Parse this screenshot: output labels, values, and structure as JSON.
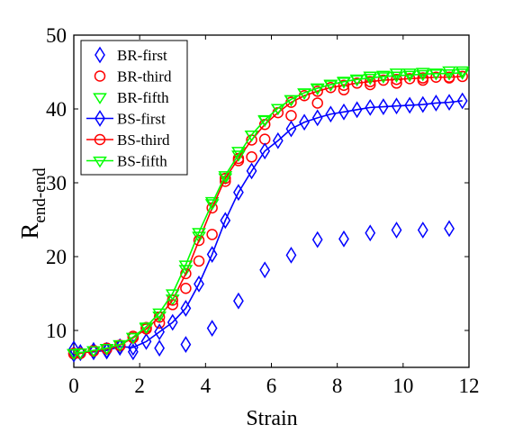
{
  "chart_data": {
    "type": "scatter",
    "title": "",
    "xlabel": "Strain",
    "ylabel": "R",
    "ylabel_sub": "end-end",
    "xlim": [
      0,
      12
    ],
    "ylim": [
      5,
      50
    ],
    "xticks": [
      0,
      2,
      4,
      6,
      8,
      10,
      12
    ],
    "yticks": [
      10,
      20,
      30,
      40,
      50
    ],
    "grid": false,
    "legend_placement": "top-left",
    "series": [
      {
        "name": "BR-first",
        "color": "#0000ff",
        "marker": "diamond",
        "line": false,
        "x": [
          0.0,
          0.2,
          0.6,
          1.0,
          1.4,
          1.8,
          2.6,
          3.4,
          4.2,
          5.0,
          5.8,
          6.6,
          7.4,
          8.2,
          9.0,
          9.8,
          10.6,
          11.4
        ],
        "y": [
          7.5,
          7.0,
          7.3,
          7.2,
          7.7,
          7.1,
          7.6,
          8.1,
          10.3,
          14.0,
          18.2,
          20.2,
          22.3,
          22.4,
          23.2,
          23.6,
          23.6,
          23.8
        ]
      },
      {
        "name": "BR-third",
        "color": "#ff0000",
        "marker": "circle",
        "line": false,
        "x": [
          0.0,
          0.2,
          0.6,
          1.0,
          1.4,
          1.8,
          2.2,
          2.6,
          3.0,
          3.4,
          3.8,
          4.2,
          4.6,
          5.0,
          5.4,
          5.8,
          6.6,
          7.4,
          8.2,
          9.0,
          9.8,
          10.6,
          11.4
        ],
        "y": [
          6.8,
          6.9,
          7.3,
          7.6,
          7.9,
          9.2,
          10.4,
          11.0,
          13.5,
          15.7,
          19.4,
          23.0,
          30.2,
          33.0,
          33.5,
          35.9,
          39.1,
          40.8,
          42.6,
          43.3,
          43.5,
          43.9,
          44.2
        ]
      },
      {
        "name": "BR-fifth",
        "color": "#00ff00",
        "marker": "triangle-down",
        "line": false,
        "x": [
          0.0,
          0.2,
          0.6,
          1.0,
          1.4,
          1.8,
          2.2,
          2.6,
          3.0,
          3.4,
          3.8,
          4.2,
          4.6,
          5.0,
          5.4,
          5.8,
          6.2,
          6.6,
          7.0,
          7.4,
          7.8,
          8.2,
          8.6,
          9.0,
          9.4,
          9.8,
          10.2,
          10.6,
          11.0,
          11.4,
          11.8
        ],
        "y": [
          6.9,
          7.0,
          7.3,
          7.6,
          8.1,
          9.1,
          10.4,
          12.0,
          14.3,
          18.3,
          22.8,
          27.5,
          30.7,
          34.3,
          36.5,
          38.6,
          40.1,
          41.3,
          42.2,
          42.9,
          43.4,
          43.8,
          44.1,
          44.5,
          44.6,
          44.9,
          44.9,
          45.0,
          44.9,
          45.2,
          45.2
        ]
      },
      {
        "name": "BS-first",
        "color": "#0000ff",
        "marker": "diamond",
        "line": true,
        "x": [
          0.0,
          0.2,
          0.6,
          1.0,
          1.4,
          1.8,
          2.2,
          2.6,
          3.0,
          3.4,
          3.8,
          4.2,
          4.6,
          5.0,
          5.4,
          5.8,
          6.2,
          6.6,
          7.0,
          7.4,
          7.8,
          8.2,
          8.6,
          9.0,
          9.4,
          9.8,
          10.2,
          10.6,
          11.0,
          11.4,
          11.8
        ],
        "y": [
          6.8,
          7.0,
          7.1,
          7.3,
          7.8,
          7.7,
          8.5,
          9.8,
          11.1,
          13.0,
          16.3,
          20.3,
          24.9,
          28.7,
          31.6,
          34.3,
          35.7,
          37.3,
          38.2,
          38.8,
          39.3,
          39.6,
          39.9,
          40.2,
          40.3,
          40.4,
          40.5,
          40.6,
          40.8,
          40.9,
          41.1
        ]
      },
      {
        "name": "BS-third",
        "color": "#ff0000",
        "marker": "circle",
        "line": true,
        "x": [
          0.0,
          0.2,
          0.6,
          1.0,
          1.4,
          1.8,
          2.2,
          2.6,
          3.0,
          3.4,
          3.8,
          4.2,
          4.6,
          5.0,
          5.4,
          5.8,
          6.2,
          6.6,
          7.0,
          7.4,
          7.8,
          8.2,
          8.6,
          9.0,
          9.4,
          9.8,
          10.2,
          10.6,
          11.0,
          11.4,
          11.8
        ],
        "y": [
          6.9,
          6.9,
          7.2,
          7.5,
          8.0,
          9.0,
          10.2,
          11.8,
          14.1,
          17.7,
          22.2,
          26.6,
          30.6,
          33.3,
          35.8,
          37.9,
          39.5,
          40.9,
          41.8,
          42.4,
          42.9,
          43.2,
          43.5,
          43.7,
          43.9,
          44.0,
          44.1,
          44.2,
          44.3,
          44.3,
          44.4
        ]
      },
      {
        "name": "BS-fifth",
        "color": "#00ff00",
        "marker": "triangle-down",
        "line": true,
        "x": [
          0.0,
          0.2,
          0.6,
          1.0,
          1.4,
          1.8,
          2.2,
          2.6,
          3.0,
          3.4,
          3.8,
          4.2,
          4.6,
          5.0,
          5.4,
          5.8,
          6.2,
          6.6,
          7.0,
          7.4,
          7.8,
          8.2,
          8.6,
          9.0,
          9.4,
          9.8,
          10.2,
          10.6,
          11.0,
          11.4,
          11.8
        ],
        "y": [
          6.9,
          7.0,
          7.3,
          7.6,
          8.1,
          9.1,
          10.5,
          12.4,
          15.0,
          18.9,
          23.3,
          27.2,
          31.0,
          33.8,
          36.5,
          38.5,
          40.1,
          41.3,
          42.2,
          42.8,
          43.3,
          43.7,
          44.0,
          44.2,
          44.4,
          44.5,
          44.6,
          44.7,
          44.8,
          44.8,
          44.9
        ]
      }
    ]
  }
}
